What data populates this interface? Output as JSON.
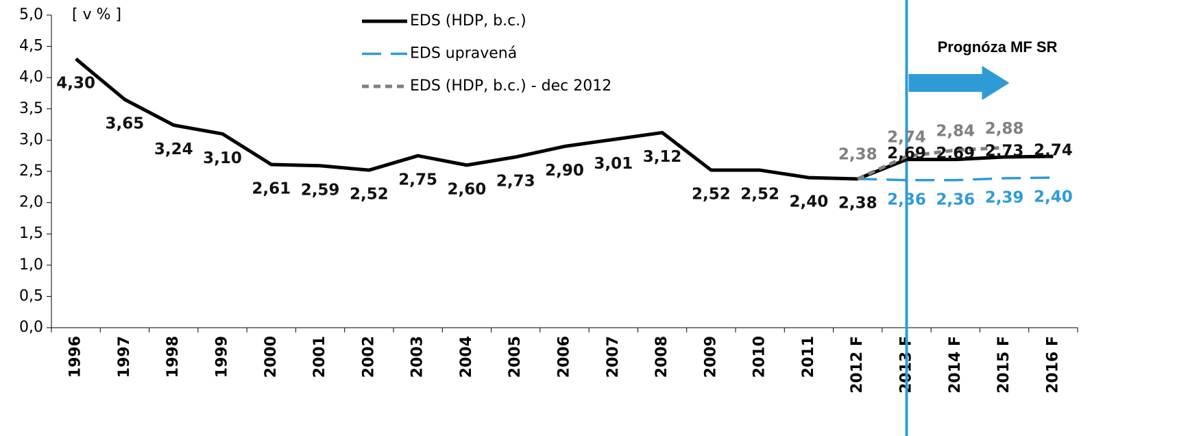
{
  "chart_data": {
    "type": "line",
    "y_unit_label": "[ v % ]",
    "annotation": "Prognóza MF SR",
    "categories": [
      "1996",
      "1997",
      "1998",
      "1999",
      "2000",
      "2001",
      "2002",
      "2003",
      "2004",
      "2005",
      "2006",
      "2007",
      "2008",
      "2009",
      "2010",
      "2011",
      "2012 F",
      "2013 F",
      "2014 F",
      "2015 F",
      "2016 F"
    ],
    "series": [
      {
        "name": "EDS (HDP, b.c.)",
        "color": "#000000",
        "dash": "solid",
        "values": [
          4.3,
          3.65,
          3.24,
          3.1,
          2.61,
          2.59,
          2.52,
          2.75,
          2.6,
          2.73,
          2.9,
          3.01,
          3.12,
          2.52,
          2.52,
          2.4,
          2.38,
          2.69,
          2.69,
          2.73,
          2.74
        ],
        "value_labels": [
          "4,30",
          "3,65",
          "3,24",
          "3,10",
          "2,61",
          "2,59",
          "2,52",
          "2,75",
          "2,60",
          "2,73",
          "2,90",
          "3,01",
          "3,12",
          "2,52",
          "2,52",
          "2,40",
          "2,38",
          "2,69",
          "2,69",
          "2,73",
          "2,74"
        ]
      },
      {
        "name": "EDS upravená",
        "color": "#2e9bd6",
        "dash": "long",
        "values": [
          null,
          null,
          null,
          null,
          null,
          null,
          null,
          null,
          null,
          null,
          null,
          null,
          null,
          null,
          null,
          null,
          2.38,
          2.36,
          2.36,
          2.39,
          2.4
        ],
        "value_labels": [
          null,
          null,
          null,
          null,
          null,
          null,
          null,
          null,
          null,
          null,
          null,
          null,
          null,
          null,
          null,
          null,
          null,
          "2,36",
          "2,36",
          "2,39",
          "2,40"
        ]
      },
      {
        "name": "EDS (HDP, b.c.) - dec 2012",
        "color": "#808080",
        "dash": "short",
        "values": [
          null,
          null,
          null,
          null,
          null,
          null,
          null,
          null,
          null,
          null,
          null,
          null,
          null,
          null,
          null,
          null,
          2.38,
          2.74,
          2.84,
          2.88,
          null
        ],
        "value_labels": [
          null,
          null,
          null,
          null,
          null,
          null,
          null,
          null,
          null,
          null,
          null,
          null,
          null,
          null,
          null,
          null,
          "2,38",
          "2,74",
          "2,84",
          "2,88",
          null
        ]
      }
    ],
    "forecast_start": "2013 F",
    "ylim": [
      0,
      5
    ],
    "yticks": [
      {
        "value": 0,
        "label": "0,0"
      },
      {
        "value": 0.5,
        "label": "0,5"
      },
      {
        "value": 1,
        "label": "1,0"
      },
      {
        "value": 1.5,
        "label": "1,5"
      },
      {
        "value": 2,
        "label": "2,0"
      },
      {
        "value": 2.5,
        "label": "2,5"
      },
      {
        "value": 3,
        "label": "3,0"
      },
      {
        "value": 3.5,
        "label": "3,5"
      },
      {
        "value": 4,
        "label": "4,0"
      },
      {
        "value": 4.5,
        "label": "4,5"
      },
      {
        "value": 5,
        "label": "5,0"
      }
    ],
    "grid": false
  }
}
